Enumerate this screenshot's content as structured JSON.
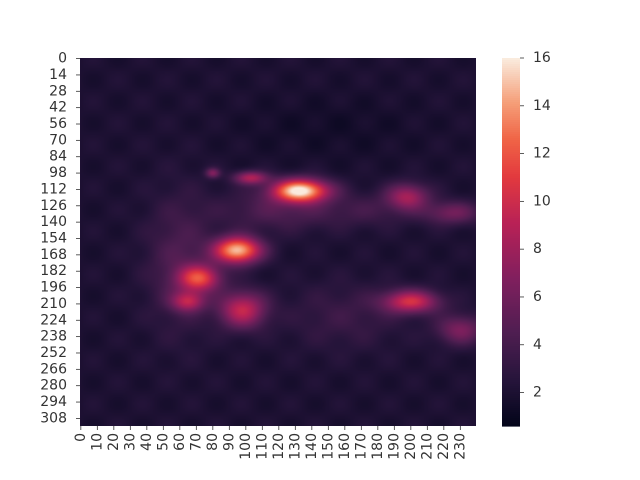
{
  "chart_data": {
    "type": "heatmap",
    "title": "",
    "xlabel": "",
    "ylabel": "",
    "rows": 315,
    "cols": 240,
    "x_tick_labels": [
      "0",
      "10",
      "20",
      "30",
      "40",
      "50",
      "60",
      "70",
      "80",
      "90",
      "100",
      "110",
      "120",
      "130",
      "140",
      "150",
      "160",
      "170",
      "180",
      "190",
      "200",
      "210",
      "220",
      "230"
    ],
    "y_tick_labels": [
      "0",
      "14",
      "28",
      "42",
      "56",
      "70",
      "84",
      "98",
      "112",
      "126",
      "140",
      "154",
      "168",
      "182",
      "196",
      "210",
      "224",
      "238",
      "252",
      "266",
      "280",
      "294",
      "308"
    ],
    "colorbar": {
      "min": 0.6,
      "max": 16,
      "tick_labels": [
        "2",
        "4",
        "6",
        "8",
        "10",
        "12",
        "14",
        "16"
      ],
      "colormap": "rocket"
    },
    "background_level": 2,
    "hotspots": [
      {
        "x": 133,
        "y": 113,
        "peak": 16.0,
        "sx": 12,
        "sy": 7
      },
      {
        "x": 95,
        "y": 164,
        "peak": 15.0,
        "sx": 10,
        "sy": 8
      },
      {
        "x": 72,
        "y": 188,
        "peak": 10.5,
        "sx": 9,
        "sy": 8
      },
      {
        "x": 98,
        "y": 215,
        "peak": 9.5,
        "sx": 10,
        "sy": 11
      },
      {
        "x": 200,
        "y": 208,
        "peak": 10.0,
        "sx": 12,
        "sy": 7
      },
      {
        "x": 198,
        "y": 118,
        "peak": 8.0,
        "sx": 9,
        "sy": 8
      },
      {
        "x": 103,
        "y": 102,
        "peak": 8.5,
        "sx": 7,
        "sy": 4
      },
      {
        "x": 225,
        "y": 132,
        "peak": 6.0,
        "sx": 12,
        "sy": 7
      },
      {
        "x": 230,
        "y": 232,
        "peak": 6.5,
        "sx": 10,
        "sy": 9
      },
      {
        "x": 65,
        "y": 208,
        "peak": 8.0,
        "sx": 7,
        "sy": 6
      },
      {
        "x": 80,
        "y": 98,
        "peak": 6.5,
        "sx": 3,
        "sy": 3
      },
      {
        "x": 60,
        "y": 175,
        "peak": 4.5,
        "sx": 14,
        "sy": 40
      },
      {
        "x": 120,
        "y": 130,
        "peak": 4.5,
        "sx": 25,
        "sy": 12
      },
      {
        "x": 175,
        "y": 130,
        "peak": 3.5,
        "sx": 20,
        "sy": 10
      },
      {
        "x": 160,
        "y": 220,
        "peak": 3.5,
        "sx": 25,
        "sy": 20
      },
      {
        "x": 50,
        "y": 40,
        "peak": 2.0,
        "sx": 40,
        "sy": 20
      },
      {
        "x": 150,
        "y": 60,
        "peak": 1.5,
        "sx": 40,
        "sy": 20
      }
    ]
  }
}
